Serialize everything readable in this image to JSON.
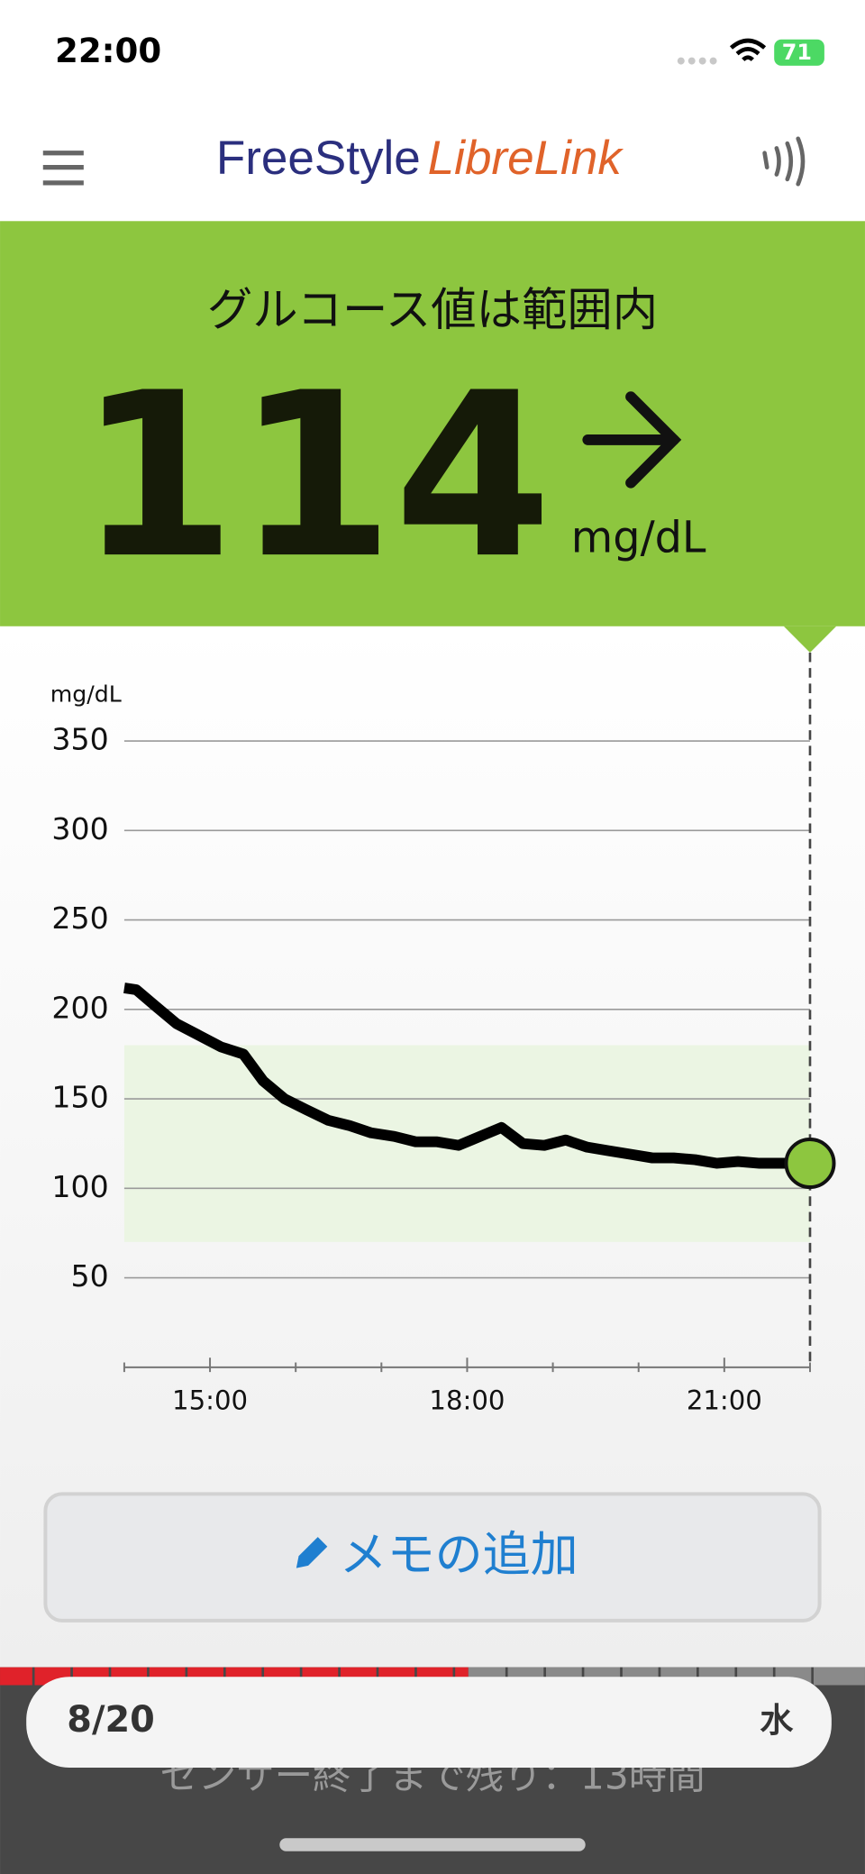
{
  "status_bar": {
    "time": "22:00",
    "battery": "71"
  },
  "header": {
    "logo_freestyle": "FreeStyle",
    "logo_librelink": "LibreLink"
  },
  "banner": {
    "status": "グルコース値は範囲内",
    "glucose": 114,
    "unit": "mg/dL"
  },
  "chart": {
    "type": "line",
    "y_label": "mg/dL",
    "x": [
      14.0,
      14.14,
      14.36,
      14.61,
      14.85,
      15.13,
      15.39,
      15.62,
      15.87,
      16.12,
      16.38,
      16.63,
      16.88,
      17.15,
      17.4,
      17.65,
      17.9,
      18.15,
      18.4,
      18.65,
      18.9,
      19.15,
      19.4,
      19.65,
      19.91,
      20.16,
      20.41,
      20.66,
      20.91,
      21.16,
      21.41,
      21.75,
      22.0
    ],
    "series": [
      {
        "color": "#000000",
        "values": [
          212,
          211,
          202,
          192,
          186,
          179,
          175,
          160,
          150,
          144,
          138,
          135,
          131,
          129,
          126,
          126,
          124,
          129,
          134,
          125,
          124,
          127,
          123,
          121,
          119,
          117,
          117,
          116,
          114,
          115,
          114,
          114,
          114
        ]
      }
    ],
    "xlim": [
      14,
      22
    ],
    "xticks": [
      {
        "value": 15,
        "label": "15:00"
      },
      {
        "value": 18,
        "label": "18:00"
      },
      {
        "value": 21,
        "label": "21:00"
      }
    ],
    "xminor": [
      14,
      16,
      17,
      19,
      20,
      22
    ],
    "ylim": [
      0,
      350
    ],
    "yticks": [
      50,
      100,
      150,
      200,
      250,
      300,
      350
    ],
    "grid": true,
    "target_range": [
      70,
      180
    ],
    "target_color": "#ebf5e3",
    "current_color": "#8dc63f"
  },
  "memo_button": "メモの追加",
  "date_bar": {
    "date": "8/20",
    "weekday": "水"
  },
  "sensor_notice": "センサー終了まで残り：13時間"
}
